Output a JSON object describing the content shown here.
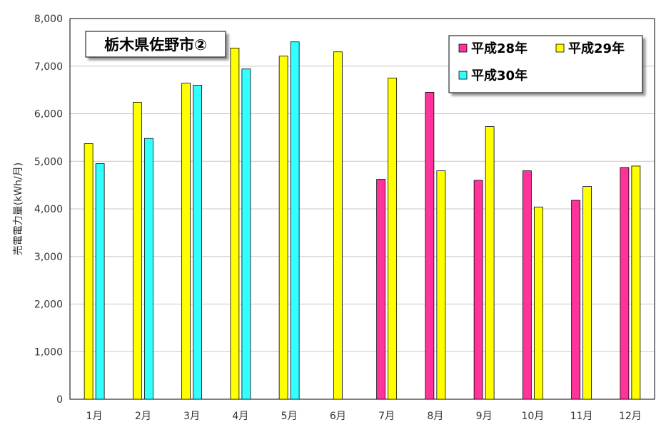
{
  "chart_data": {
    "type": "bar",
    "title": "栃木県佐野市②",
    "ylabel": "売電電力量(kWh/月)",
    "xlabel": "",
    "ylim": [
      0,
      8000
    ],
    "yticks": [
      0,
      1000,
      2000,
      3000,
      4000,
      5000,
      6000,
      7000,
      8000
    ],
    "ytick_labels": [
      "0",
      "1,000",
      "2,000",
      "3,000",
      "4,000",
      "5,000",
      "6,000",
      "7,000",
      "8,000"
    ],
    "grid": true,
    "legend_position": "top-right",
    "categories": [
      "1月",
      "2月",
      "3月",
      "4月",
      "5月",
      "6月",
      "7月",
      "8月",
      "9月",
      "10月",
      "11月",
      "12月"
    ],
    "series": [
      {
        "name": "平成28年",
        "color": "#ff3399",
        "values": [
          null,
          null,
          null,
          null,
          null,
          null,
          4620,
          6450,
          4600,
          4800,
          4180,
          4870
        ]
      },
      {
        "name": "平成29年",
        "color": "#ffff00",
        "values": [
          5370,
          6240,
          6640,
          7380,
          7210,
          7300,
          6750,
          4800,
          5730,
          4040,
          4470,
          4900
        ]
      },
      {
        "name": "平成30年",
        "color": "#33ffff",
        "values": [
          4950,
          5480,
          6600,
          6940,
          7510,
          null,
          null,
          null,
          null,
          null,
          null,
          null
        ]
      }
    ]
  }
}
